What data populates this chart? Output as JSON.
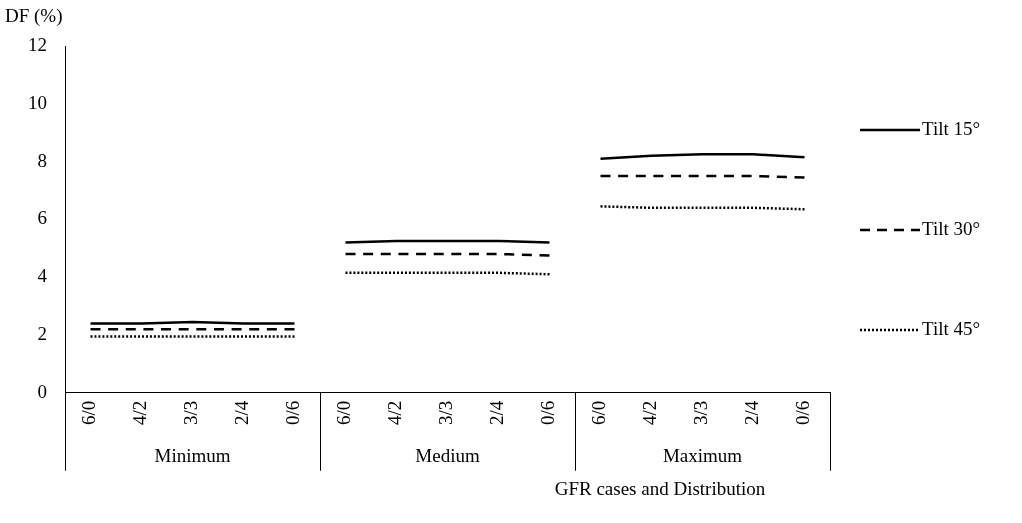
{
  "chart_data": {
    "type": "line",
    "xlabel": "GFR cases and Distribution",
    "ylabel": "DF (%)",
    "categories": [
      "6/0",
      "4/2",
      "3/3",
      "2/4",
      "0/6",
      "6/0",
      "4/2",
      "3/3",
      "2/4",
      "0/6",
      "6/0",
      "4/2",
      "3/3",
      "2/4",
      "0/6"
    ],
    "annotations": [
      "Minimum",
      "Medium",
      "Maximum"
    ],
    "ylim": [
      0,
      12
    ],
    "yticks": [
      0,
      2,
      4,
      6,
      8,
      10,
      12
    ],
    "grid": false,
    "legend": "right",
    "marker": "none",
    "series": [
      {
        "name": "Tilt 15°",
        "color": "#000000",
        "line_style": "solid",
        "values": [
          2.4,
          2.4,
          2.45,
          2.4,
          2.4,
          null,
          null,
          null,
          null,
          null,
          null,
          null,
          null,
          null,
          null
        ]
      },
      {
        "color": "#000000",
        "line_style": "solid",
        "values": [
          null,
          null,
          null,
          null,
          null,
          5.2,
          5.25,
          5.25,
          5.25,
          5.2,
          null,
          null,
          null,
          null,
          null
        ]
      },
      {
        "color": "#000000",
        "line_style": "solid",
        "values": [
          null,
          null,
          null,
          null,
          null,
          null,
          null,
          null,
          null,
          null,
          8.1,
          8.2,
          8.25,
          8.25,
          8.15
        ]
      },
      {
        "name": "Tilt 30°",
        "color": "#000000",
        "line_style": "dashed",
        "values": [
          2.2,
          2.2,
          2.2,
          2.2,
          2.2,
          null,
          null,
          null,
          null,
          null,
          null,
          null,
          null,
          null,
          null
        ]
      },
      {
        "color": "#000000",
        "line_style": "dashed",
        "values": [
          null,
          null,
          null,
          null,
          null,
          4.8,
          4.8,
          4.8,
          4.8,
          4.75,
          null,
          null,
          null,
          null,
          null
        ]
      },
      {
        "color": "#000000",
        "line_style": "dashed",
        "values": [
          null,
          null,
          null,
          null,
          null,
          null,
          null,
          null,
          null,
          null,
          7.5,
          7.5,
          7.5,
          7.5,
          7.45
        ]
      },
      {
        "name": "Tilt 45°",
        "color": "#000000",
        "line_style": "dotted",
        "values": [
          1.95,
          1.95,
          1.95,
          1.95,
          1.95,
          null,
          null,
          null,
          null,
          null,
          null,
          null,
          null,
          null,
          null
        ]
      },
      {
        "color": "#000000",
        "line_style": "dotted",
        "values": [
          null,
          null,
          null,
          null,
          null,
          4.15,
          4.15,
          4.15,
          4.15,
          4.1,
          null,
          null,
          null,
          null,
          null
        ]
      },
      {
        "color": "#000000",
        "line_style": "dotted",
        "values": [
          null,
          null,
          null,
          null,
          null,
          null,
          null,
          null,
          null,
          null,
          6.45,
          6.4,
          6.4,
          6.4,
          6.35
        ]
      }
    ]
  }
}
